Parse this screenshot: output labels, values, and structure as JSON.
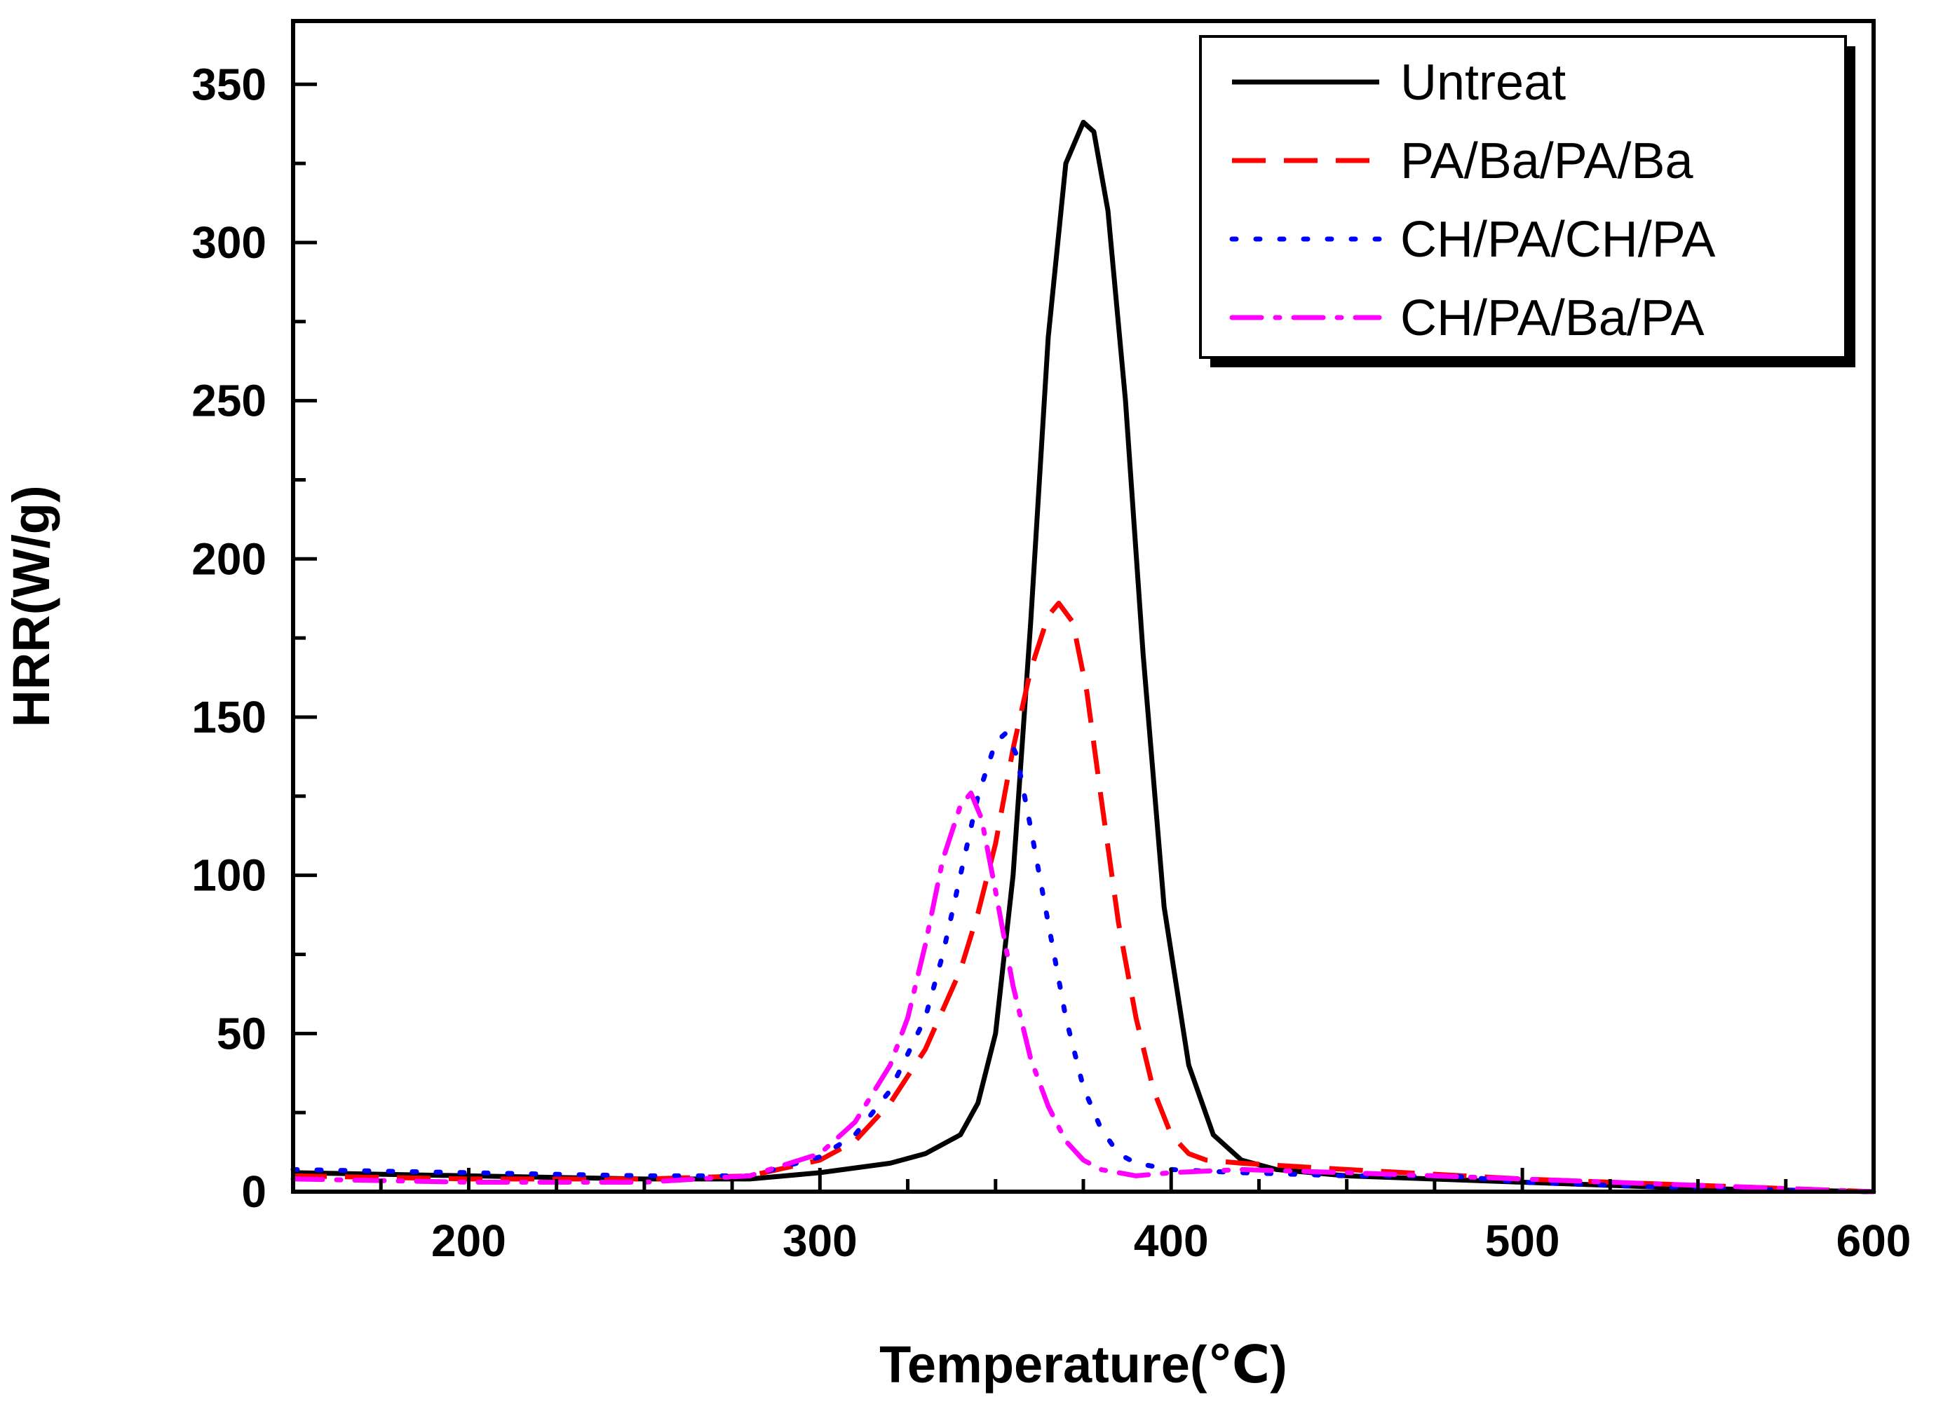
{
  "chart_data": {
    "type": "line",
    "title": "",
    "xlabel": "Temperature(℃)",
    "ylabel": "HRR(W/g)",
    "xlim": [
      150,
      600
    ],
    "ylim": [
      0,
      370
    ],
    "xticks": [
      200,
      300,
      400,
      500,
      600
    ],
    "yticks": [
      0,
      50,
      100,
      150,
      200,
      250,
      300,
      350
    ],
    "xtick_labels": [
      "200",
      "300",
      "400",
      "500",
      "600"
    ],
    "ytick_labels": [
      "0",
      "50",
      "100",
      "150",
      "200",
      "250",
      "300",
      "350"
    ],
    "grid": false,
    "legend_position": "top-right",
    "series": [
      {
        "name": "Untreat",
        "color": "#000000",
        "style": "solid",
        "x": [
          150,
          200,
          250,
          280,
          300,
          320,
          330,
          340,
          345,
          350,
          355,
          360,
          365,
          370,
          375,
          378,
          382,
          387,
          392,
          398,
          405,
          412,
          420,
          430,
          450,
          500,
          550,
          600
        ],
        "y": [
          6,
          5,
          4,
          4,
          6,
          9,
          12,
          18,
          28,
          50,
          100,
          180,
          270,
          325,
          338,
          335,
          310,
          250,
          170,
          90,
          40,
          18,
          10,
          7,
          5,
          3,
          1,
          0
        ]
      },
      {
        "name": "PA/Ba/PA/Ba",
        "color": "#ff0000",
        "style": "dashed",
        "x": [
          150,
          200,
          250,
          280,
          300,
          310,
          320,
          330,
          340,
          345,
          350,
          355,
          360,
          365,
          368,
          372,
          376,
          380,
          385,
          390,
          395,
          400,
          405,
          410,
          420,
          450,
          500,
          550,
          600
        ],
        "y": [
          5,
          4,
          4,
          5,
          10,
          16,
          28,
          45,
          70,
          88,
          110,
          140,
          165,
          182,
          186,
          180,
          158,
          125,
          85,
          55,
          32,
          18,
          12,
          10,
          9,
          7,
          4,
          2,
          0
        ]
      },
      {
        "name": "CH/PA/CH/PA",
        "color": "#0000ff",
        "style": "dotted",
        "x": [
          150,
          200,
          250,
          280,
          300,
          310,
          320,
          330,
          335,
          340,
          345,
          350,
          353,
          356,
          360,
          365,
          370,
          375,
          380,
          385,
          390,
          400,
          420,
          450,
          480,
          500,
          550,
          600
        ],
        "y": [
          7,
          6,
          5,
          5,
          11,
          18,
          32,
          55,
          75,
          100,
          125,
          142,
          145,
          138,
          115,
          85,
          55,
          33,
          20,
          12,
          9,
          7,
          6,
          5,
          5,
          3,
          1,
          0
        ]
      },
      {
        "name": "CH/PA/Ba/PA",
        "color": "#ff00ff",
        "style": "dashdot",
        "x": [
          150,
          200,
          250,
          280,
          300,
          310,
          320,
          325,
          330,
          335,
          340,
          343,
          346,
          350,
          355,
          360,
          365,
          370,
          375,
          380,
          390,
          400,
          420,
          450,
          500,
          550,
          600
        ],
        "y": [
          4,
          3,
          3,
          5,
          12,
          22,
          40,
          55,
          78,
          105,
          122,
          126,
          118,
          95,
          65,
          42,
          27,
          16,
          10,
          7,
          5,
          6,
          7,
          6,
          4,
          2,
          0
        ]
      }
    ]
  }
}
